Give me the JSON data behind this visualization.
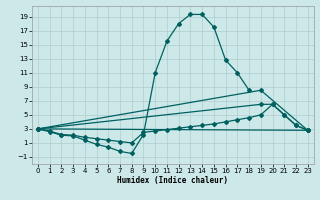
{
  "xlabel": "Humidex (Indice chaleur)",
  "xlim": [
    -0.5,
    23.5
  ],
  "ylim": [
    -2.0,
    20.5
  ],
  "yticks": [
    -1,
    1,
    3,
    5,
    7,
    9,
    11,
    13,
    15,
    17,
    19
  ],
  "xticks": [
    0,
    1,
    2,
    3,
    4,
    5,
    6,
    7,
    8,
    9,
    10,
    11,
    12,
    13,
    14,
    15,
    16,
    17,
    18,
    19,
    20,
    21,
    22,
    23
  ],
  "bg_color": "#cce8e8",
  "grid_color": "#b0cccc",
  "line_color": "#006060",
  "curve1_x": [
    0,
    1,
    2,
    3,
    4,
    5,
    6,
    7,
    8,
    9,
    10,
    11,
    12,
    13,
    14,
    15,
    16,
    17,
    18
  ],
  "curve1_y": [
    3.0,
    2.6,
    2.1,
    2.0,
    1.4,
    0.8,
    0.4,
    -0.2,
    -0.5,
    2.2,
    11.0,
    15.5,
    18.0,
    19.3,
    19.3,
    17.5,
    12.8,
    11.0,
    8.5
  ],
  "curve2_x": [
    0,
    1,
    2,
    3,
    4,
    5,
    6,
    7,
    8,
    9,
    10,
    11,
    12,
    13,
    14,
    15,
    16,
    17,
    18,
    19,
    20,
    21,
    22,
    23
  ],
  "curve2_y": [
    3.0,
    2.7,
    2.2,
    2.1,
    1.8,
    1.6,
    1.4,
    1.2,
    1.0,
    2.5,
    2.7,
    2.9,
    3.1,
    3.3,
    3.5,
    3.7,
    4.0,
    4.3,
    4.6,
    5.0,
    6.5,
    5.0,
    3.5,
    2.8
  ],
  "line3_x": [
    0,
    19,
    20,
    21,
    22,
    23
  ],
  "line3_y": [
    3.0,
    6.5,
    6.5,
    5.0,
    3.5,
    2.8
  ],
  "line4_x": [
    0,
    19,
    23
  ],
  "line4_y": [
    3.0,
    8.5,
    2.8
  ]
}
